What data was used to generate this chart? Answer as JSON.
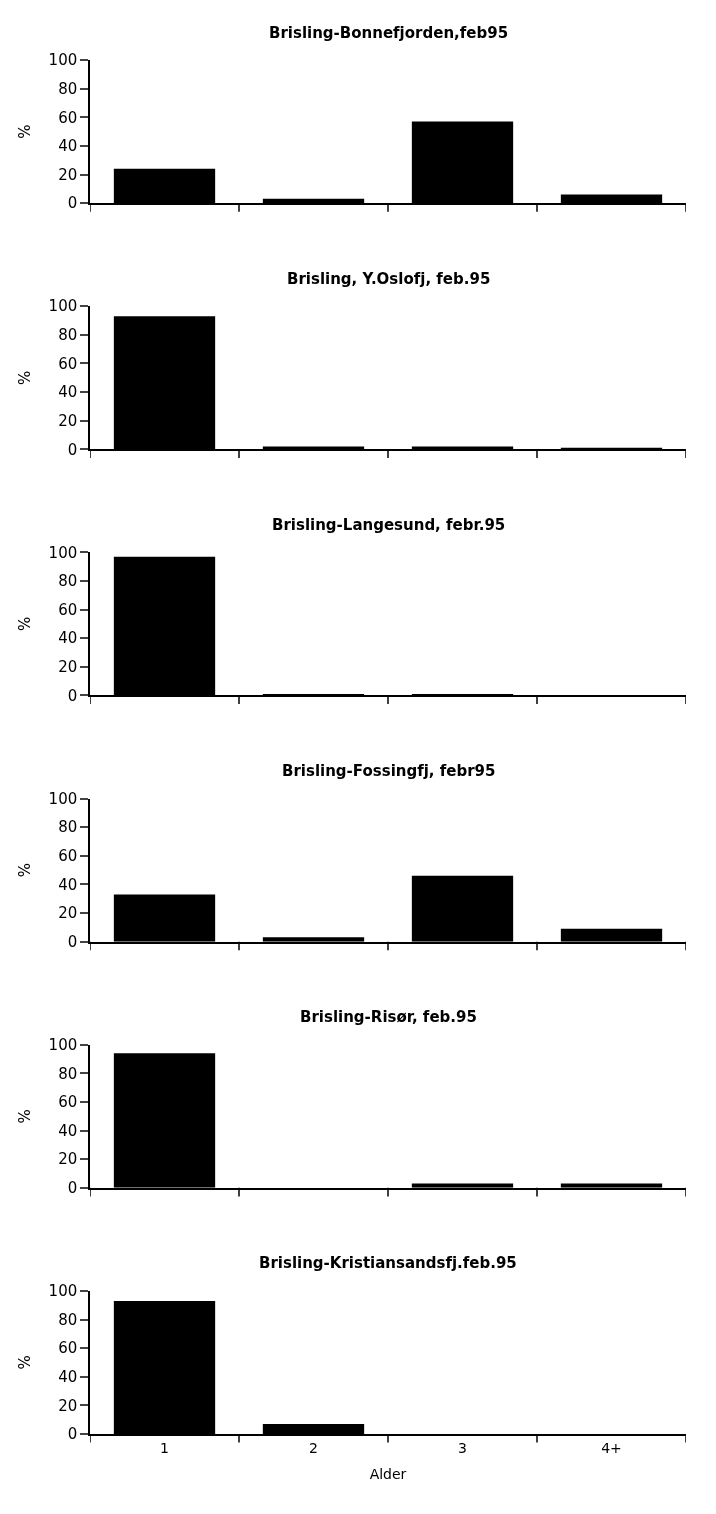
{
  "chart_data": [
    {
      "type": "bar",
      "title": "Brisling-Bonnefjorden,feb95",
      "ylabel": "%",
      "categories": [
        null,
        null,
        null,
        null
      ],
      "values": [
        24,
        3,
        57,
        6
      ],
      "color": "#000000",
      "ylim": [
        0,
        100
      ],
      "yticks": [
        0,
        20,
        40,
        60,
        80,
        100
      ]
    },
    {
      "type": "bar",
      "title": "Brisling, Y.Oslofj, feb.95",
      "ylabel": "%",
      "categories": [
        null,
        null,
        null,
        null
      ],
      "values": [
        93,
        2,
        2,
        1
      ],
      "color": "#000000",
      "ylim": [
        0,
        100
      ],
      "yticks": [
        0,
        20,
        40,
        60,
        80,
        100
      ]
    },
    {
      "type": "bar",
      "title": "Brisling-Langesund, febr.95",
      "ylabel": "%",
      "categories": [
        null,
        null,
        null,
        null
      ],
      "values": [
        97,
        1,
        1,
        0
      ],
      "color": "#000000",
      "ylim": [
        0,
        100
      ],
      "yticks": [
        0,
        20,
        40,
        60,
        80,
        100
      ]
    },
    {
      "type": "bar",
      "title": "Brisling-Fossingfj, febr95",
      "ylabel": "%",
      "categories": [
        null,
        null,
        null,
        null
      ],
      "values": [
        33,
        3,
        46,
        9
      ],
      "color": "#000000",
      "ylim": [
        0,
        100
      ],
      "yticks": [
        0,
        20,
        40,
        60,
        80,
        100
      ]
    },
    {
      "type": "bar",
      "title": "Brisling-Risør, feb.95",
      "ylabel": "%",
      "categories": [
        null,
        null,
        null,
        null
      ],
      "values": [
        94,
        0,
        3,
        3
      ],
      "color": "#000000",
      "ylim": [
        0,
        100
      ],
      "yticks": [
        0,
        20,
        40,
        60,
        80,
        100
      ]
    },
    {
      "type": "bar",
      "title": "Brisling-Kristiansandsfj.feb.95",
      "ylabel": "%",
      "xlabel": "Alder",
      "categories": [
        "1",
        "2",
        "3",
        "4+"
      ],
      "values": [
        93,
        7,
        0,
        0
      ],
      "color": "#000000",
      "ylim": [
        0,
        100
      ],
      "yticks": [
        0,
        20,
        40,
        60,
        80,
        100
      ]
    }
  ]
}
